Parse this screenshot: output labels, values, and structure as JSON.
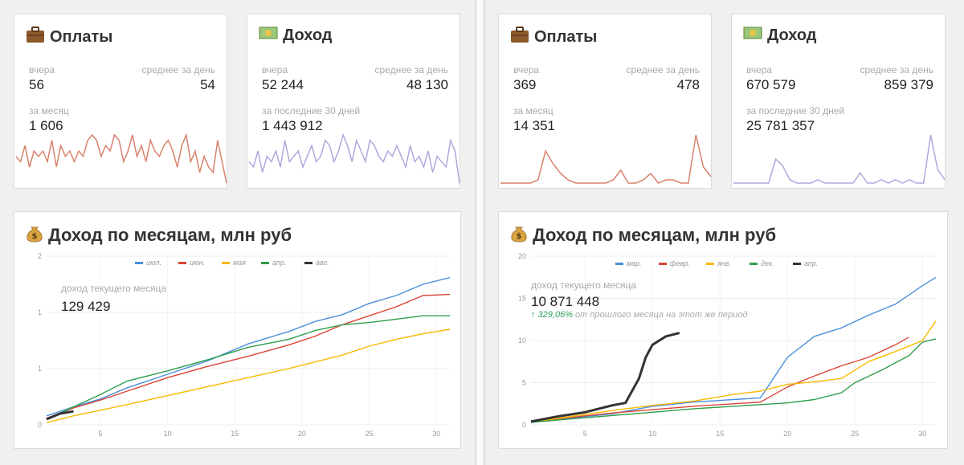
{
  "left": {
    "payments": {
      "title": "Оплаты",
      "icon": "briefcase-icon",
      "yesterday_label": "вчера",
      "yesterday_value": "56",
      "avg_label": "среднее за день",
      "avg_value": "54",
      "month_label": "за месяц",
      "month_value": "1 606",
      "spark_color": "#d9826e"
    },
    "income": {
      "title": "Доход",
      "icon": "money-icon",
      "yesterday_label": "вчера",
      "yesterday_value": "52 244",
      "avg_label": "среднее за день",
      "avg_value": "48 130",
      "month_label": "за последние 30 дней",
      "month_value": "1 443 912",
      "spark_color": "#b4a6dc"
    },
    "monthly": {
      "title": "Доход по месяцам, млн руб",
      "icon": "money-bag-icon",
      "current_label": "доход текущего месяца",
      "current_value": "129 429"
    }
  },
  "right": {
    "payments": {
      "title": "Оплаты",
      "icon": "briefcase-icon",
      "yesterday_label": "вчера",
      "yesterday_value": "369",
      "avg_label": "среднее за день",
      "avg_value": "478",
      "month_label": "за месяц",
      "month_value": "14 351",
      "spark_color": "#d9826e"
    },
    "income": {
      "title": "Доход",
      "icon": "money-icon",
      "yesterday_label": "вчера",
      "yesterday_value": "670 579",
      "avg_label": "среднее за день",
      "avg_value": "859 379",
      "month_label": "за последние 30 дней",
      "month_value": "25 781 357",
      "spark_color": "#b4a6dc"
    },
    "monthly": {
      "title": "Доход по месяцам, млн руб",
      "icon": "money-bag-icon",
      "current_label": "доход текущего месяца",
      "current_value": "10 871 448",
      "growth_pct": "↑ 329,06%",
      "growth_text": "от прошлого месяца на этот же период"
    }
  },
  "chart_data": [
    {
      "type": "line",
      "title": "",
      "note": "sparkline left payments",
      "y": [
        5,
        4,
        7,
        3,
        6,
        5,
        6,
        4,
        8,
        3,
        7,
        5,
        6,
        4,
        6,
        5,
        8,
        9,
        8,
        5,
        7,
        6,
        9,
        8,
        4,
        6,
        9,
        5,
        7,
        4,
        8,
        6,
        5,
        7,
        8,
        6,
        3,
        7,
        9,
        4,
        6,
        2,
        5,
        3,
        2,
        8,
        4,
        0
      ]
    },
    {
      "type": "line",
      "note": "sparkline left income",
      "y": [
        4,
        3,
        6,
        2,
        5,
        4,
        6,
        3,
        8,
        4,
        5,
        6,
        3,
        5,
        7,
        4,
        5,
        8,
        7,
        4,
        6,
        9,
        7,
        4,
        8,
        6,
        4,
        8,
        7,
        5,
        4,
        6,
        5,
        7,
        5,
        3,
        7,
        4,
        5,
        3,
        6,
        2,
        5,
        4,
        3,
        8,
        6,
        0
      ]
    },
    {
      "type": "line",
      "note": "sparkline right payments",
      "y": [
        0,
        0,
        0,
        0,
        0,
        1,
        10,
        6,
        3,
        1,
        0,
        0,
        0,
        0,
        0,
        1,
        4,
        0,
        0,
        1,
        3,
        0,
        1,
        1,
        0,
        0,
        15,
        5,
        2
      ]
    },
    {
      "type": "line",
      "note": "sparkline right income",
      "y": [
        0,
        0,
        0,
        0,
        0,
        0,
        7,
        5,
        1,
        0,
        0,
        0,
        1,
        0,
        0,
        0,
        0,
        0,
        3,
        0,
        0,
        1,
        0,
        1,
        0,
        1,
        0,
        0,
        14,
        4,
        1
      ]
    },
    {
      "type": "line",
      "xlabel": "",
      "ylabel": "",
      "x_ticks": [
        5,
        10,
        15,
        20,
        25,
        30
      ],
      "y_ticks": [
        "0",
        "1",
        "1",
        "2"
      ],
      "ylim": [
        0,
        1.5
      ],
      "legend_position": "top",
      "series": [
        {
          "name": "июл.",
          "color": "#4a8fdb",
          "points": [
            [
              1,
              0.08
            ],
            [
              3,
              0.16
            ],
            [
              5,
              0.23
            ],
            [
              7,
              0.33
            ],
            [
              10,
              0.45
            ],
            [
              13,
              0.57
            ],
            [
              16,
              0.72
            ],
            [
              19,
              0.83
            ],
            [
              21,
              0.92
            ],
            [
              23,
              0.98
            ],
            [
              25,
              1.08
            ],
            [
              27,
              1.15
            ],
            [
              29,
              1.25
            ],
            [
              31,
              1.31
            ]
          ]
        },
        {
          "name": "июн.",
          "color": "#db4437",
          "points": [
            [
              1,
              0.06
            ],
            [
              3,
              0.15
            ],
            [
              5,
              0.22
            ],
            [
              7,
              0.3
            ],
            [
              10,
              0.42
            ],
            [
              13,
              0.52
            ],
            [
              16,
              0.61
            ],
            [
              19,
              0.71
            ],
            [
              21,
              0.79
            ],
            [
              23,
              0.89
            ],
            [
              25,
              0.97
            ],
            [
              27,
              1.05
            ],
            [
              29,
              1.15
            ],
            [
              31,
              1.16
            ]
          ]
        },
        {
          "name": "мая",
          "color": "#f6b900",
          "points": [
            [
              1,
              0.02
            ],
            [
              3,
              0.08
            ],
            [
              5,
              0.13
            ],
            [
              7,
              0.18
            ],
            [
              10,
              0.26
            ],
            [
              13,
              0.34
            ],
            [
              16,
              0.42
            ],
            [
              19,
              0.5
            ],
            [
              21,
              0.56
            ],
            [
              23,
              0.62
            ],
            [
              25,
              0.7
            ],
            [
              27,
              0.76
            ],
            [
              29,
              0.81
            ],
            [
              31,
              0.85
            ]
          ]
        },
        {
          "name": "апр.",
          "color": "#2e9e4b",
          "points": [
            [
              1,
              0.05
            ],
            [
              3,
              0.16
            ],
            [
              5,
              0.27
            ],
            [
              7,
              0.39
            ],
            [
              10,
              0.48
            ],
            [
              13,
              0.58
            ],
            [
              16,
              0.69
            ],
            [
              19,
              0.76
            ],
            [
              21,
              0.84
            ],
            [
              23,
              0.89
            ],
            [
              25,
              0.91
            ],
            [
              27,
              0.94
            ],
            [
              29,
              0.97
            ],
            [
              31,
              0.97
            ]
          ]
        },
        {
          "name": "авг.",
          "color": "#333333",
          "points": [
            [
              1,
              0.05
            ],
            [
              2,
              0.1
            ],
            [
              3,
              0.12
            ]
          ]
        }
      ]
    },
    {
      "type": "line",
      "xlabel": "",
      "ylabel": "",
      "x_ticks": [
        5,
        10,
        15,
        20,
        25,
        30
      ],
      "y_ticks": [
        "0",
        "5",
        "10",
        "15",
        "20"
      ],
      "ylim": [
        0,
        20
      ],
      "legend_position": "top",
      "series": [
        {
          "name": "мар.",
          "color": "#4a8fdb",
          "points": [
            [
              1,
              0.3
            ],
            [
              4,
              0.8
            ],
            [
              7,
              1.3
            ],
            [
              10,
              2.2
            ],
            [
              13,
              2.7
            ],
            [
              16,
              3.0
            ],
            [
              18,
              3.2
            ],
            [
              20,
              8.0
            ],
            [
              22,
              10.5
            ],
            [
              24,
              11.5
            ],
            [
              26,
              13.0
            ],
            [
              28,
              14.3
            ],
            [
              30,
              16.5
            ],
            [
              31,
              17.5
            ]
          ]
        },
        {
          "name": "февр.",
          "color": "#db4437",
          "points": [
            [
              1,
              0.3
            ],
            [
              4,
              0.9
            ],
            [
              7,
              1.4
            ],
            [
              10,
              1.8
            ],
            [
              13,
              2.2
            ],
            [
              16,
              2.5
            ],
            [
              18,
              2.7
            ],
            [
              20,
              4.5
            ],
            [
              22,
              5.8
            ],
            [
              24,
              7.0
            ],
            [
              26,
              8.0
            ],
            [
              28,
              9.5
            ],
            [
              29,
              10.4
            ]
          ]
        },
        {
          "name": "янв.",
          "color": "#f6b900",
          "points": [
            [
              1,
              0.3
            ],
            [
              4,
              1.0
            ],
            [
              7,
              1.7
            ],
            [
              10,
              2.3
            ],
            [
              13,
              2.8
            ],
            [
              16,
              3.6
            ],
            [
              18,
              4.0
            ],
            [
              20,
              4.8
            ],
            [
              22,
              5.1
            ],
            [
              24,
              5.5
            ],
            [
              26,
              7.5
            ],
            [
              28,
              8.7
            ],
            [
              30,
              10.0
            ],
            [
              31,
              12.3
            ]
          ]
        },
        {
          "name": "дек.",
          "color": "#2e9e4b",
          "points": [
            [
              1,
              0.3
            ],
            [
              4,
              0.7
            ],
            [
              7,
              1.1
            ],
            [
              10,
              1.5
            ],
            [
              13,
              1.9
            ],
            [
              16,
              2.2
            ],
            [
              18,
              2.4
            ],
            [
              20,
              2.6
            ],
            [
              22,
              3.0
            ],
            [
              24,
              3.8
            ],
            [
              25,
              5.0
            ],
            [
              27,
              6.5
            ],
            [
              29,
              8.2
            ],
            [
              30,
              9.8
            ],
            [
              31,
              10.2
            ]
          ]
        },
        {
          "name": "апр.",
          "color": "#333333",
          "points": [
            [
              1,
              0.4
            ],
            [
              3,
              1.0
            ],
            [
              5,
              1.5
            ],
            [
              7,
              2.3
            ],
            [
              8,
              2.6
            ],
            [
              9,
              5.5
            ],
            [
              9.5,
              8.0
            ],
            [
              10,
              9.5
            ],
            [
              11,
              10.5
            ],
            [
              12,
              10.9
            ]
          ]
        }
      ]
    }
  ]
}
